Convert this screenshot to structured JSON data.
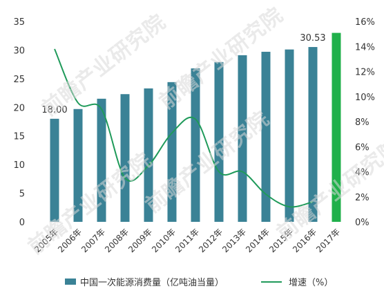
{
  "chart_data": {
    "type": "bar",
    "categories": [
      "2005年",
      "2006年",
      "2007年",
      "2008年",
      "2009年",
      "2010年",
      "2011年",
      "2012年",
      "2013年",
      "2014年",
      "2015年",
      "2016年",
      "2017年"
    ],
    "series": [
      {
        "name": "中国一次能源消费量（亿吨油当量）",
        "type": "bar",
        "axis": "left",
        "values": [
          18.0,
          19.7,
          21.5,
          22.3,
          23.3,
          24.4,
          26.8,
          27.9,
          29.1,
          29.7,
          30.1,
          30.53,
          33.0
        ],
        "color": "#3a8296",
        "highlight_color": "#20b04b"
      },
      {
        "name": "增速（%）",
        "type": "line",
        "axis": "right",
        "values": [
          13.8,
          9.5,
          9.0,
          3.5,
          4.5,
          7.1,
          8.2,
          4.0,
          4.0,
          2.2,
          1.2,
          1.6,
          null
        ],
        "color": "#1f9a5a"
      }
    ],
    "ylim_left": [
      0,
      35
    ],
    "yticks_left": [
      "0",
      "5",
      "10",
      "15",
      "20",
      "25",
      "30",
      "35"
    ],
    "ylim_right": [
      0,
      16
    ],
    "yticks_right": [
      "0%",
      "2%",
      "4%",
      "6%",
      "8%",
      "10%",
      "12%",
      "14%",
      "16%"
    ],
    "data_labels": [
      {
        "index": 0,
        "text": "18.00"
      },
      {
        "index": 11,
        "text": "30.53"
      }
    ],
    "legend_position": "bottom",
    "grid": false
  },
  "watermark": "前瞻产业研究院"
}
